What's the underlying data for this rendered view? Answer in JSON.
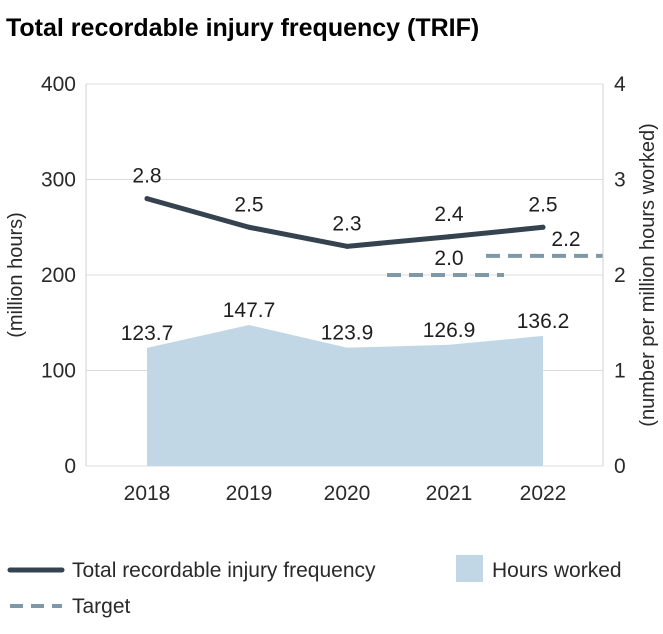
{
  "chart_data": {
    "type": "line",
    "title": "Total recordable injury frequency (TRIF)",
    "categories": [
      "2018",
      "2019",
      "2020",
      "2021",
      "2022"
    ],
    "y_left": {
      "label": "(million hours)",
      "range": [
        0,
        400
      ],
      "ticks": [
        "0",
        "100",
        "200",
        "300",
        "400"
      ]
    },
    "y_right": {
      "label": "(number per million hours worked)",
      "range": [
        0,
        4
      ],
      "ticks": [
        "0",
        "1",
        "2",
        "3",
        "4"
      ]
    },
    "grid": true,
    "legend_position": "bottom",
    "series": [
      {
        "name": "Hours worked",
        "kind": "area",
        "axis": "left",
        "color": "#c2d7e6",
        "values": [
          123.7,
          147.7,
          123.9,
          126.9,
          136.2
        ],
        "labels": [
          "123.7",
          "147.7",
          "123.9",
          "126.9",
          "136.2"
        ]
      },
      {
        "name": "Total recordable injury frequency",
        "kind": "line",
        "axis": "right",
        "color": "#34434f",
        "values": [
          2.8,
          2.5,
          2.3,
          2.4,
          2.5
        ],
        "labels": [
          "2.8",
          "2.5",
          "2.3",
          "2.4",
          "2.5"
        ]
      },
      {
        "name": "Target",
        "kind": "dashed-step",
        "axis": "right",
        "color": "#7f98a8",
        "segments": [
          {
            "from": "2020",
            "to": "2021",
            "value": 2.0,
            "label": "2.0"
          },
          {
            "from": "2021",
            "to": "2022",
            "value": 2.2,
            "label": "2.2"
          }
        ]
      }
    ]
  }
}
